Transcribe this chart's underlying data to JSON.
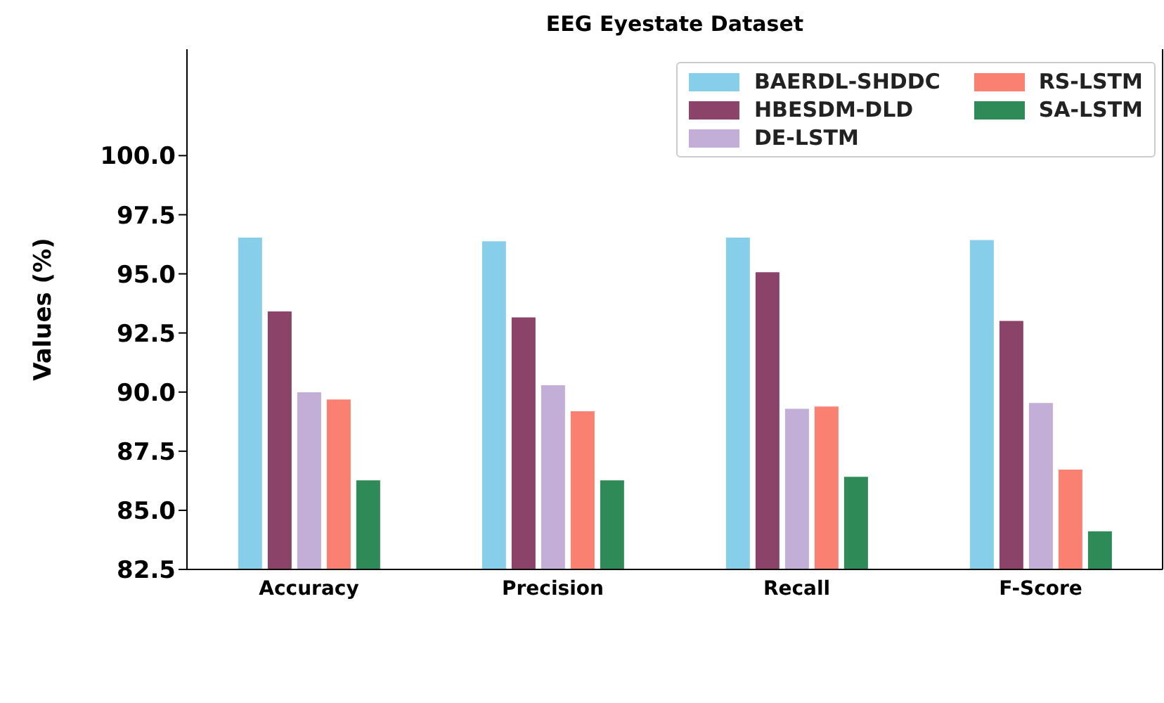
{
  "chart_data": {
    "type": "bar",
    "title": "EEG Eyestate Dataset",
    "ylabel": "Values (%)",
    "categories": [
      "Accuracy",
      "Precision",
      "Recall",
      "F-Score"
    ],
    "series": [
      {
        "name": "BAERDL-SHDDC",
        "color": "#87ceeb",
        "values": [
          96.53,
          96.38,
          96.53,
          96.43
        ]
      },
      {
        "name": "HBESDM-DLD",
        "color": "#8b4369",
        "values": [
          93.41,
          93.16,
          95.07,
          93.01
        ]
      },
      {
        "name": "DE-LSTM",
        "color": "#c2aed6",
        "values": [
          89.99,
          90.29,
          89.29,
          89.54
        ]
      },
      {
        "name": "RS-LSTM",
        "color": "#fa8072",
        "values": [
          89.69,
          89.19,
          89.39,
          86.72
        ]
      },
      {
        "name": "SA-LSTM",
        "color": "#2e8b57",
        "values": [
          86.27,
          86.27,
          86.42,
          84.11
        ]
      }
    ],
    "ylim": [
      82.5,
      104.5
    ],
    "yticks": [
      {
        "value": 82.5,
        "label": "82.5"
      },
      {
        "value": 85,
        "label": "85.0"
      },
      {
        "value": 87.5,
        "label": "87.5"
      },
      {
        "value": 90,
        "label": "90.0"
      },
      {
        "value": 92.5,
        "label": "92.5"
      },
      {
        "value": 95,
        "label": "95.0"
      },
      {
        "value": 97.5,
        "label": "97.5"
      },
      {
        "value": 100,
        "label": "100.0"
      }
    ],
    "grid": false,
    "legend": "top right"
  }
}
